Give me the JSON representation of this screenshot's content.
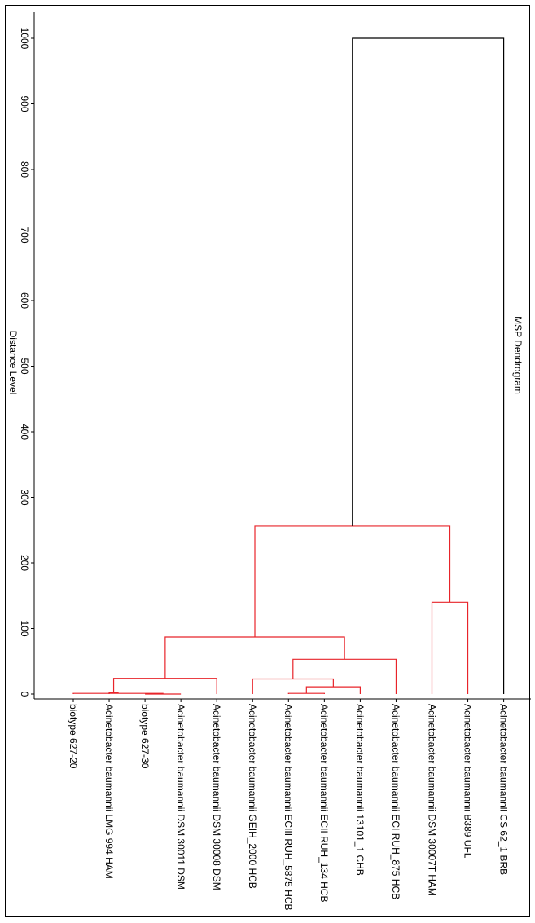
{
  "chart_data": {
    "type": "dendrogram",
    "title": "MSP Dendrogram",
    "ylabel": "Distance Level",
    "ylim": [
      0,
      1000
    ],
    "yticks": [
      0,
      100,
      200,
      300,
      400,
      500,
      600,
      700,
      800,
      900,
      1000
    ],
    "leaves": [
      "biotype 627-20",
      "Acinetobacter baumannii LMG 994 HAM",
      "biotype 627-30",
      "Acinetobacter baumannii DSM 30011 DSM",
      "Acinetobacter baumannii DSM 30008 DSM",
      "Acinetobacter baumannii GEIH_2000 HCB",
      "Acinetobacter baumannii ECIII RUH_5875 HCB",
      "Acinetobacter baumannii ECII RUH_134 HCB",
      "Acinetobacter baumannii 13101_1 CHB",
      "Acinetobacter baumannii ECI RUH_875 HCB",
      "Acinetobacter baumannii DSM 30007T HAM",
      "Acinetobacter baumannii B389 UFL",
      "Acinetobacter baumannii CS 62_1 BRB"
    ],
    "merges": [
      {
        "left": "L2",
        "right": "L3",
        "height": 0
      },
      {
        "left": "L0",
        "right": "M0",
        "height": 1
      },
      {
        "left": "L1",
        "right": "M1",
        "height": 2
      },
      {
        "left": "M2",
        "right": "L4",
        "height": 24
      },
      {
        "left": "L6",
        "right": "L7",
        "height": 1
      },
      {
        "left": "M4",
        "right": "L8",
        "height": 11
      },
      {
        "left": "L5",
        "right": "M5",
        "height": 23
      },
      {
        "left": "M6",
        "right": "L9",
        "height": 53
      },
      {
        "left": "M3",
        "right": "M7",
        "height": 87
      },
      {
        "left": "L10",
        "right": "L11",
        "height": 140
      },
      {
        "left": "M8",
        "right": "M9",
        "height": 256
      },
      {
        "left": "M10",
        "right": "L12",
        "height": 1000
      }
    ],
    "colors": {
      "cluster": "#e8242a",
      "outlier": "#000000"
    },
    "grid": false
  }
}
